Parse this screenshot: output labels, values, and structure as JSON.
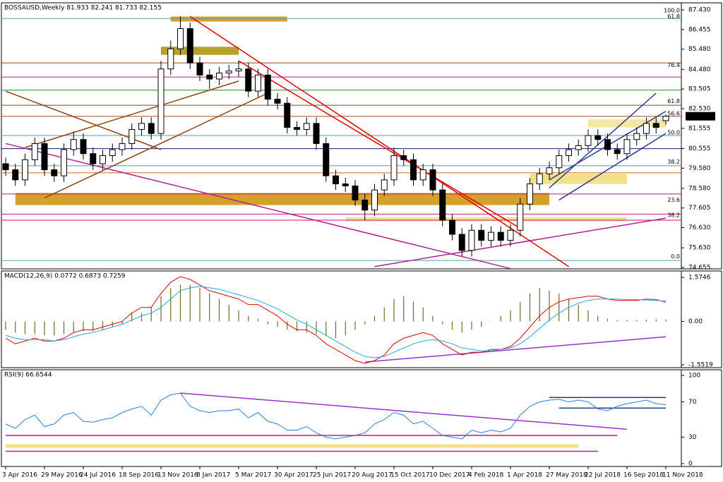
{
  "chart_data": [
    {
      "type": "candlestick",
      "title": "BOSSAUSD,Weekly  81.933 82.241 81.733 82.155",
      "categories": [
        "3 Apr 2016",
        null,
        null,
        null,
        "29 May 2016",
        null,
        null,
        null,
        "24 Jul 2016",
        null,
        null,
        null,
        "18 Sep 2016",
        null,
        null,
        null,
        "13 Nov 2016",
        null,
        null,
        null,
        "8 Jan 2017",
        null,
        null,
        null,
        "5 Mar 2017",
        null,
        null,
        null,
        "30 Apr 2017",
        null,
        null,
        null,
        "25 Jun 2017",
        null,
        null,
        null,
        "20 Aug 2017",
        null,
        null,
        null,
        "15 Oct 2017",
        null,
        null,
        null,
        "10 Dec 2017",
        null,
        null,
        null,
        "4 Feb 2018",
        null,
        null,
        null,
        "1 Apr 2018",
        null,
        null,
        null,
        "27 May 2018",
        null,
        null,
        null,
        "22 Jul 2018",
        null,
        null,
        null,
        "16 Sep 2018",
        null,
        null,
        null,
        "11 Nov 2018"
      ],
      "ohlc": [
        [
          79.8,
          80.1,
          79.2,
          79.5
        ],
        [
          79.5,
          79.8,
          78.7,
          79.0
        ],
        [
          79.0,
          80.3,
          78.7,
          80.0
        ],
        [
          80.0,
          81.1,
          79.7,
          80.8
        ],
        [
          80.8,
          81.1,
          79.2,
          79.5
        ],
        [
          79.5,
          79.8,
          78.9,
          79.2
        ],
        [
          79.2,
          80.8,
          78.9,
          80.5
        ],
        [
          80.5,
          81.4,
          80.2,
          81.0
        ],
        [
          81.0,
          81.3,
          80.0,
          80.3
        ],
        [
          80.3,
          80.6,
          79.5,
          79.8
        ],
        [
          79.8,
          80.5,
          79.5,
          80.2
        ],
        [
          80.2,
          80.8,
          79.9,
          80.5
        ],
        [
          80.5,
          81.1,
          80.2,
          80.8
        ],
        [
          80.8,
          81.8,
          80.5,
          81.5
        ],
        [
          81.5,
          82.1,
          81.2,
          81.8
        ],
        [
          81.8,
          82.1,
          81.0,
          81.3
        ],
        [
          81.3,
          84.9,
          81.0,
          84.5
        ],
        [
          84.5,
          85.9,
          84.2,
          85.5
        ],
        [
          85.5,
          87.1,
          85.2,
          86.5
        ],
        [
          86.5,
          86.8,
          84.5,
          84.8
        ],
        [
          84.8,
          85.1,
          83.9,
          84.2
        ],
        [
          84.2,
          84.5,
          83.5,
          84.0
        ],
        [
          84.0,
          84.6,
          83.7,
          84.3
        ],
        [
          84.3,
          84.7,
          84.0,
          84.4
        ],
        [
          84.4,
          84.9,
          84.1,
          84.5
        ],
        [
          84.5,
          84.8,
          83.1,
          83.4
        ],
        [
          83.4,
          84.5,
          83.1,
          84.2
        ],
        [
          84.2,
          84.5,
          82.7,
          83.0
        ],
        [
          83.0,
          83.3,
          82.5,
          82.8
        ],
        [
          82.8,
          83.1,
          81.3,
          81.6
        ],
        [
          81.6,
          81.9,
          81.2,
          81.5
        ],
        [
          81.5,
          82.1,
          81.2,
          81.8
        ],
        [
          81.8,
          82.1,
          80.5,
          80.8
        ],
        [
          80.8,
          81.1,
          78.9,
          79.2
        ],
        [
          79.2,
          79.5,
          78.5,
          78.8
        ],
        [
          78.8,
          79.1,
          78.4,
          78.7
        ],
        [
          78.7,
          79.0,
          77.7,
          78.0
        ],
        [
          78.0,
          78.3,
          77.0,
          77.5
        ],
        [
          77.5,
          78.8,
          77.2,
          78.5
        ],
        [
          78.5,
          79.3,
          78.2,
          79.0
        ],
        [
          79.0,
          80.6,
          78.7,
          80.2
        ],
        [
          80.2,
          80.5,
          79.7,
          80.0
        ],
        [
          80.0,
          80.3,
          78.7,
          79.0
        ],
        [
          79.0,
          79.8,
          78.7,
          79.5
        ],
        [
          79.5,
          79.8,
          78.2,
          78.5
        ],
        [
          78.5,
          78.8,
          76.7,
          77.0
        ],
        [
          77.0,
          77.3,
          76.0,
          76.3
        ],
        [
          76.3,
          76.6,
          75.2,
          75.5
        ],
        [
          75.5,
          76.8,
          75.2,
          76.5
        ],
        [
          76.5,
          76.8,
          75.7,
          76.0
        ],
        [
          76.0,
          76.7,
          75.7,
          76.4
        ],
        [
          76.4,
          76.7,
          75.7,
          76.0
        ],
        [
          76.0,
          76.8,
          75.7,
          76.5
        ],
        [
          76.5,
          78.1,
          76.2,
          77.8
        ],
        [
          77.8,
          79.1,
          77.5,
          78.8
        ],
        [
          78.8,
          79.6,
          78.5,
          79.3
        ],
        [
          79.3,
          79.9,
          79.0,
          79.6
        ],
        [
          79.6,
          80.5,
          79.3,
          80.2
        ],
        [
          80.2,
          80.8,
          79.9,
          80.5
        ],
        [
          80.5,
          81.0,
          80.2,
          80.7
        ],
        [
          80.7,
          81.5,
          80.4,
          81.2
        ],
        [
          81.2,
          81.5,
          80.7,
          81.0
        ],
        [
          81.0,
          81.3,
          80.2,
          80.5
        ],
        [
          80.5,
          80.8,
          80.0,
          80.3
        ],
        [
          80.3,
          81.3,
          80.0,
          81.0
        ],
        [
          81.0,
          81.6,
          80.7,
          81.3
        ],
        [
          81.3,
          82.1,
          81.0,
          81.8
        ],
        [
          81.8,
          82.1,
          81.3,
          81.6
        ],
        [
          81.933,
          82.241,
          81.733,
          82.155
        ]
      ],
      "last_price": 82.155,
      "ylim": [
        74.655,
        87.43
      ],
      "yticks": [
        {
          "value": 87.43,
          "label": "87.430"
        },
        86.455,
        {
          "value": 85.48,
          "label": "85.480"
        },
        {
          "value": 84.48,
          "label": "84.480"
        },
        83.505,
        {
          "value": 82.53,
          "label": "82.530"
        },
        81.555,
        80.555,
        {
          "value": 79.58,
          "label": "79.580"
        },
        {
          "value": 78.58,
          "label": "78.580"
        },
        77.605,
        {
          "value": 76.63,
          "label": "76.630"
        },
        {
          "value": 75.63,
          "label": "75.630"
        },
        74.655
      ],
      "levels": [
        {
          "value": 87.0,
          "color": "#5f9ea0"
        },
        {
          "value": 84.8,
          "color": "#8b4513"
        },
        {
          "value": 84.1,
          "color": "#c71585"
        },
        {
          "value": 83.45,
          "color": "#228b22"
        },
        {
          "value": 82.7,
          "color": "#8b4513"
        },
        {
          "value": 82.15,
          "color": "#a0522d"
        },
        {
          "value": 81.2,
          "color": "#5f9ea0"
        },
        {
          "value": 80.55,
          "color": "#191970"
        },
        {
          "value": 79.7,
          "color": "#5f9ea0"
        },
        {
          "value": 79.35,
          "color": "#d2691e"
        },
        {
          "value": 78.3,
          "color": "#c71585"
        },
        {
          "value": 77.3,
          "color": "#c71585"
        },
        {
          "value": 77.0,
          "color": "#c71585"
        },
        {
          "value": 75.0,
          "color": "#5f9ea0"
        }
      ],
      "zones": [
        {
          "x": [
            1,
            56
          ],
          "y": [
            77.75,
            78.35
          ],
          "color": "#d4a22a"
        },
        {
          "x": [
            17,
            29
          ],
          "y": [
            86.85,
            87.1
          ],
          "color": "#d4a22a"
        },
        {
          "x": [
            16,
            24
          ],
          "y": [
            85.2,
            85.6
          ],
          "color": "#b5a02a"
        },
        {
          "x": [
            54,
            64
          ],
          "y": [
            78.8,
            79.3
          ],
          "color": "#f2e08a"
        },
        {
          "x": [
            60,
            68
          ],
          "y": [
            81.6,
            82.0
          ],
          "color": "#f4e6a6"
        },
        {
          "x": [
            35,
            64
          ],
          "y": [
            76.95,
            77.15
          ],
          "color": "#f2e08a"
        }
      ],
      "trendlines": [
        {
          "x": [
            19,
            58
          ],
          "y": [
            87.1,
            74.7
          ],
          "color": "#e00000"
        },
        {
          "x": [
            24,
            53
          ],
          "y": [
            84.9,
            76.6
          ],
          "color": "#e00000"
        },
        {
          "x": [
            0,
            16
          ],
          "y": [
            83.4,
            80.5
          ],
          "color": "#8b4513"
        },
        {
          "x": [
            2,
            24
          ],
          "y": [
            80.6,
            83.9
          ],
          "color": "#8b4513"
        },
        {
          "x": [
            4,
            27
          ],
          "y": [
            78.1,
            83.3
          ],
          "color": "#8b4513"
        },
        {
          "x": [
            0,
            52
          ],
          "y": [
            80.8,
            74.6
          ],
          "color": "#b0208f"
        },
        {
          "x": [
            38,
            68
          ],
          "y": [
            74.7,
            77.1
          ],
          "color": "#b0208f"
        },
        {
          "x": [
            56,
            67
          ],
          "y": [
            78.6,
            83.3
          ],
          "color": "#283c8c"
        },
        {
          "x": [
            57,
            68
          ],
          "y": [
            78.0,
            81.3
          ],
          "color": "#283c8c"
        },
        {
          "x": [
            56,
            68
          ],
          "y": [
            79.0,
            82.4
          ],
          "color": "#283c8c"
        }
      ],
      "fib_labels": [
        {
          "label": "100.0",
          "value": 87.25,
          "color": "#5f9ea0"
        },
        {
          "label": "61.8",
          "value": 86.95,
          "color": "#c71585"
        },
        {
          "label": "76.4",
          "value": 84.55,
          "color": "#5f9ea0"
        },
        {
          "label": "61.8",
          "value": 82.75,
          "color": "#5f9ea0"
        },
        {
          "label": "56.6",
          "value": 82.15,
          "color": "#c71585"
        },
        {
          "label": "50.0",
          "value": 81.2,
          "color": "#5f9ea0"
        },
        {
          "label": "38.2",
          "value": 79.75,
          "color": "#5f9ea0"
        },
        {
          "label": "23.6",
          "value": 77.85,
          "color": "#5f9ea0"
        },
        {
          "label": "38.2",
          "value": 77.1,
          "color": "#c71585"
        },
        {
          "label": "0.0",
          "value": 75.05,
          "color": "#5f9ea0"
        }
      ]
    },
    {
      "type": "macd",
      "title": "MACD(12,26,9) 0.0772 0.6873 0.7259",
      "ylim": [
        -1.5519,
        1.5746
      ],
      "yticks": [
        1.5746,
        {
          "value": 0,
          "label": "0.00"
        },
        -1.5519
      ],
      "series": [
        {
          "style": "histogram",
          "color": "#6b6b2a",
          "values": [
            -0.3,
            -0.4,
            -0.45,
            -0.45,
            -0.5,
            -0.5,
            -0.45,
            -0.4,
            -0.35,
            -0.35,
            -0.3,
            -0.2,
            -0.1,
            0.3,
            0.3,
            0.5,
            0.9,
            1.2,
            1.3,
            1.3,
            1.2,
            1.0,
            0.8,
            0.6,
            0.4,
            0.2,
            0.1,
            -0.1,
            -0.2,
            -0.3,
            -0.35,
            -0.4,
            -0.45,
            -0.5,
            -0.6,
            -0.5,
            -0.3,
            -0.1,
            0.2,
            0.5,
            0.8,
            0.9,
            0.7,
            0.5,
            0.2,
            -0.1,
            -0.3,
            -0.4,
            -0.3,
            -0.2,
            0.0,
            0.2,
            0.4,
            0.7,
            1.0,
            1.2,
            1.1,
            1.0,
            0.8,
            0.6,
            0.4,
            0.2,
            0.1,
            0.05,
            0.05,
            0.05,
            0.07,
            0.08,
            0.0772
          ]
        },
        {
          "style": "line",
          "color": "#e00000",
          "values": [
            -0.6,
            -0.8,
            -0.7,
            -0.6,
            -0.7,
            -0.7,
            -0.6,
            -0.4,
            -0.3,
            -0.3,
            -0.2,
            -0.1,
            0.0,
            0.3,
            0.5,
            0.5,
            1.0,
            1.4,
            1.6,
            1.5,
            1.3,
            1.1,
            1.0,
            0.9,
            0.8,
            0.6,
            0.6,
            0.4,
            0.2,
            -0.1,
            -0.3,
            -0.3,
            -0.5,
            -0.8,
            -1.0,
            -1.2,
            -1.4,
            -1.5,
            -1.4,
            -1.2,
            -0.8,
            -0.6,
            -0.5,
            -0.4,
            -0.5,
            -0.8,
            -1.0,
            -1.2,
            -1.1,
            -1.1,
            -1.0,
            -1.0,
            -0.9,
            -0.6,
            -0.2,
            0.2,
            0.5,
            0.7,
            0.8,
            0.85,
            0.9,
            0.9,
            0.8,
            0.75,
            0.75,
            0.75,
            0.8,
            0.78,
            0.6873
          ]
        },
        {
          "style": "line",
          "color": "#2aa7d8",
          "values": [
            -0.5,
            -0.6,
            -0.65,
            -0.65,
            -0.65,
            -0.7,
            -0.65,
            -0.55,
            -0.45,
            -0.4,
            -0.3,
            -0.2,
            -0.1,
            0.05,
            0.2,
            0.3,
            0.5,
            0.8,
            1.1,
            1.2,
            1.25,
            1.2,
            1.15,
            1.05,
            0.95,
            0.85,
            0.75,
            0.6,
            0.45,
            0.25,
            0.05,
            -0.1,
            -0.3,
            -0.5,
            -0.7,
            -0.9,
            -1.1,
            -1.25,
            -1.3,
            -1.25,
            -1.1,
            -0.95,
            -0.8,
            -0.7,
            -0.65,
            -0.7,
            -0.8,
            -0.95,
            -1.0,
            -1.05,
            -1.05,
            -1.0,
            -0.95,
            -0.8,
            -0.55,
            -0.25,
            0.05,
            0.3,
            0.5,
            0.65,
            0.75,
            0.8,
            0.8,
            0.8,
            0.78,
            0.78,
            0.76,
            0.75,
            0.7259
          ]
        }
      ],
      "trendlines": [
        {
          "x": [
            37,
            68
          ],
          "y": [
            -1.45,
            -0.55
          ],
          "color": "#9b30d0"
        }
      ]
    },
    {
      "type": "line",
      "title": "RSI(9) 66.6544",
      "ylim": [
        0,
        100
      ],
      "yticks": [
        100,
        70,
        30,
        0
      ],
      "color": "#2a7fd8",
      "values": [
        45,
        40,
        50,
        55,
        42,
        45,
        55,
        58,
        48,
        47,
        50,
        52,
        58,
        62,
        65,
        55,
        72,
        78,
        80,
        65,
        60,
        58,
        60,
        60,
        62,
        52,
        58,
        48,
        45,
        38,
        38,
        42,
        35,
        30,
        28,
        30,
        32,
        35,
        45,
        50,
        58,
        55,
        45,
        48,
        40,
        32,
        30,
        28,
        38,
        35,
        38,
        36,
        40,
        55,
        65,
        70,
        72,
        73,
        70,
        72,
        70,
        62,
        60,
        65,
        68,
        70,
        72,
        68,
        66.6544
      ],
      "zones": [
        {
          "x": [
            0,
            59
          ],
          "y": [
            18,
            22
          ],
          "color": "#f2e08a"
        }
      ],
      "trendlines": [
        {
          "x": [
            18,
            64
          ],
          "y": [
            80,
            39
          ],
          "color": "#9b30d0"
        },
        {
          "x": [
            56,
            68
          ],
          "y": [
            75,
            75
          ],
          "color": "#283c8c"
        },
        {
          "x": [
            57,
            68
          ],
          "y": [
            63,
            63
          ],
          "color": "#283c8c"
        },
        {
          "x": [
            0,
            63
          ],
          "y": [
            32,
            32
          ],
          "color": "#c71585"
        },
        {
          "x": [
            0,
            61
          ],
          "y": [
            14,
            14
          ],
          "color": "#c71585"
        }
      ]
    }
  ]
}
